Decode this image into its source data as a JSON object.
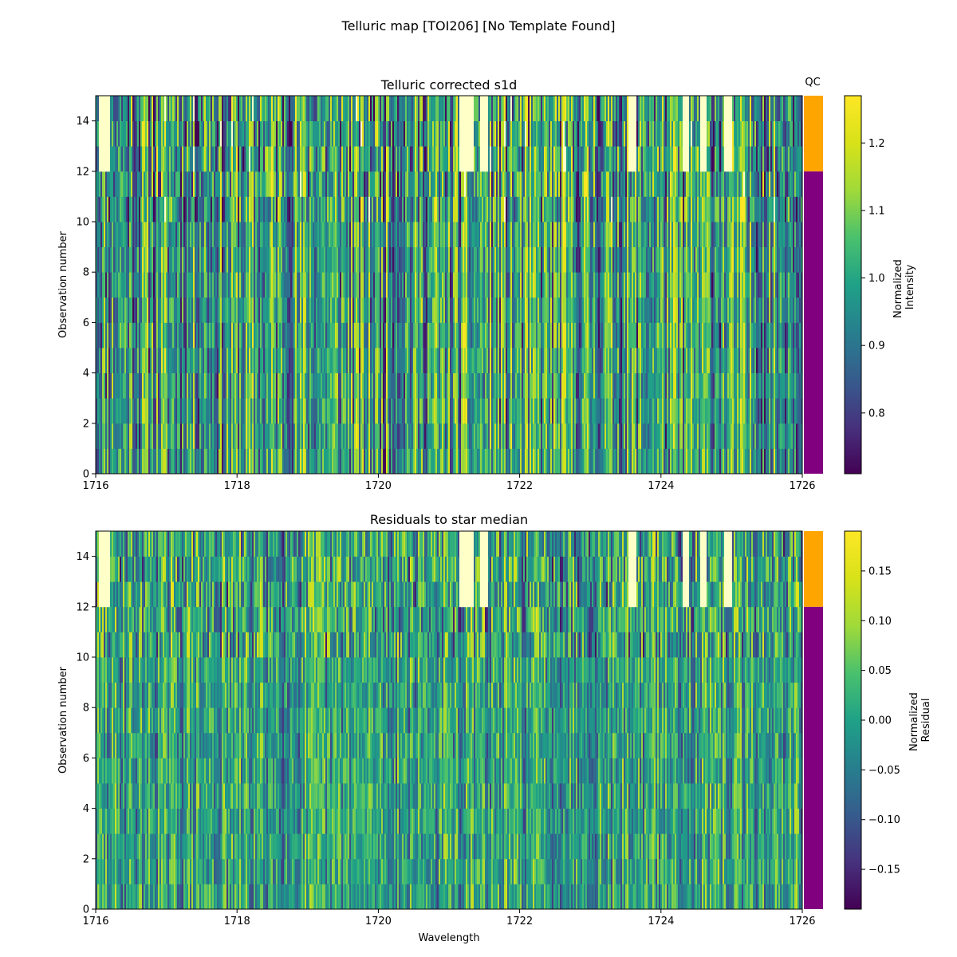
{
  "figure": {
    "title": "Telluric map [TOI206] [No Template Found]"
  },
  "chart_data": [
    {
      "type": "heatmap",
      "title": "Telluric corrected s1d",
      "xlabel": "",
      "ylabel": "Observation number",
      "xlim": [
        1716,
        1726
      ],
      "ylim": [
        0,
        15
      ],
      "x_ticks": [
        "1716",
        "1718",
        "1720",
        "1722",
        "1724",
        "1726"
      ],
      "y_ticks": [
        "0",
        "2",
        "4",
        "6",
        "8",
        "10",
        "12",
        "14"
      ],
      "colormap": "viridis",
      "colorbar": {
        "label": "Normalized\nIntensity",
        "label_lines": [
          "Normalized",
          "Intensity"
        ],
        "range": [
          0.71,
          1.27
        ],
        "ticks": [
          "0.8",
          "0.9",
          "1.0",
          "1.1",
          "1.2"
        ],
        "tick_values": [
          0.8,
          0.9,
          1.0,
          1.1,
          1.2
        ]
      },
      "n_observations": 15,
      "saturated_bands_obs_12_14": [
        [
          1716.05,
          1716.2
        ],
        [
          1721.15,
          1721.35
        ],
        [
          1721.45,
          1721.55
        ],
        [
          1723.55,
          1723.65
        ],
        [
          1724.3,
          1724.4
        ],
        [
          1724.55,
          1724.65
        ],
        [
          1724.9,
          1725.0
        ]
      ],
      "qc": {
        "label": "QC",
        "segments": [
          {
            "from": 0,
            "to": 12,
            "color": "#800080"
          },
          {
            "from": 12,
            "to": 15,
            "color": "#FFA500"
          }
        ]
      }
    },
    {
      "type": "heatmap",
      "title": "Residuals to star median",
      "xlabel": "Wavelength",
      "ylabel": "Observation number",
      "xlim": [
        1716,
        1726
      ],
      "ylim": [
        0,
        15
      ],
      "x_ticks": [
        "1716",
        "1718",
        "1720",
        "1722",
        "1724",
        "1726"
      ],
      "y_ticks": [
        "0",
        "2",
        "4",
        "6",
        "8",
        "10",
        "12",
        "14"
      ],
      "colormap": "viridis",
      "colorbar": {
        "label": "Normalized\nResidual",
        "label_lines": [
          "Normalized",
          "Residual"
        ],
        "range": [
          -0.19,
          0.19
        ],
        "ticks": [
          "−0.15",
          "−0.10",
          "−0.05",
          "0.00",
          "0.05",
          "0.10",
          "0.15"
        ],
        "tick_values": [
          -0.15,
          -0.1,
          -0.05,
          0.0,
          0.05,
          0.1,
          0.15
        ]
      },
      "n_observations": 15,
      "saturated_bands_obs_12_14": [
        [
          1716.05,
          1716.2
        ],
        [
          1721.15,
          1721.35
        ],
        [
          1721.45,
          1721.55
        ],
        [
          1723.55,
          1723.65
        ],
        [
          1724.3,
          1724.4
        ],
        [
          1724.55,
          1724.65
        ],
        [
          1724.9,
          1725.0
        ]
      ],
      "qc": {
        "label": "",
        "segments": [
          {
            "from": 0,
            "to": 12,
            "color": "#800080"
          },
          {
            "from": 12,
            "to": 15,
            "color": "#FFA500"
          }
        ]
      }
    }
  ]
}
